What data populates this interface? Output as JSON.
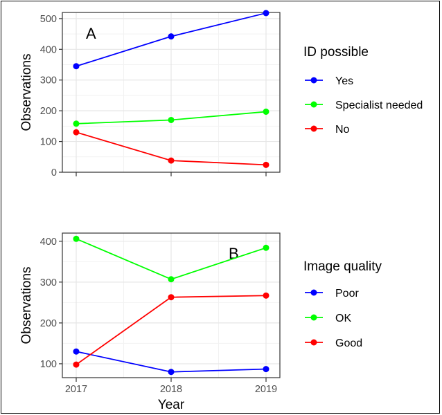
{
  "chart_data": [
    {
      "type": "line",
      "panel_label": "A",
      "title": "",
      "xlabel": "",
      "ylabel": "Observations",
      "x": [
        2017,
        2018,
        2019
      ],
      "ylim": [
        0,
        520
      ],
      "yticks": [
        0,
        100,
        200,
        300,
        400,
        500
      ],
      "grid": true,
      "legend_title": "ID possible",
      "legend_position": "right",
      "series": [
        {
          "name": "Yes",
          "color": "#0000ff",
          "values": [
            345,
            442,
            518
          ]
        },
        {
          "name": "Specialist needed",
          "color": "#00ff00",
          "values": [
            158,
            170,
            197
          ]
        },
        {
          "name": "No",
          "color": "#ff0000",
          "values": [
            130,
            38,
            24
          ]
        }
      ]
    },
    {
      "type": "line",
      "panel_label": "B",
      "title": "",
      "xlabel": "Year",
      "ylabel": "Observations",
      "x": [
        2017,
        2018,
        2019
      ],
      "ylim": [
        66,
        420
      ],
      "yticks": [
        100,
        200,
        300,
        400
      ],
      "grid": true,
      "legend_title": "Image quality",
      "legend_position": "right",
      "series": [
        {
          "name": "Poor",
          "color": "#0000ff",
          "values": [
            130,
            80,
            87
          ]
        },
        {
          "name": "OK",
          "color": "#00ff00",
          "values": [
            406,
            307,
            384
          ]
        },
        {
          "name": "Good",
          "color": "#ff0000",
          "values": [
            98,
            263,
            267
          ]
        }
      ]
    }
  ]
}
